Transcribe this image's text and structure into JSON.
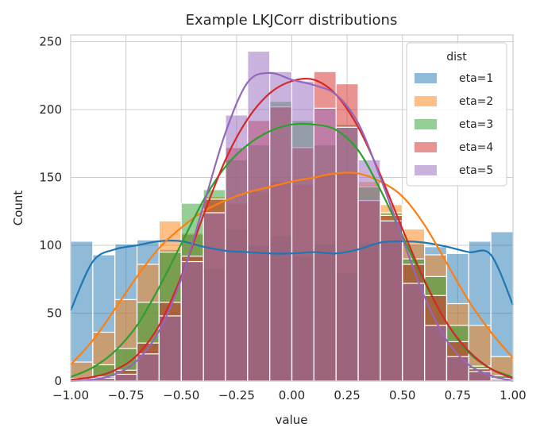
{
  "chart_data": {
    "type": "histogram",
    "title": "Example LKJCorr distributions",
    "xlabel": "value",
    "ylabel": "Count",
    "xlim": [
      -1.0,
      1.0
    ],
    "ylim": [
      0,
      255
    ],
    "grid": true,
    "x_ticks": [
      "-1.00",
      "-0.75",
      "-0.50",
      "-0.25",
      "0.00",
      "0.25",
      "0.50",
      "0.75",
      "1.00"
    ],
    "y_ticks": [
      "0",
      "50",
      "100",
      "150",
      "200",
      "250"
    ],
    "bin_edges": [
      -1.0,
      -0.9,
      -0.8,
      -0.7,
      -0.6,
      -0.5,
      -0.4,
      -0.3,
      -0.2,
      -0.1,
      0.0,
      0.1,
      0.2,
      0.3,
      0.4,
      0.5,
      0.6,
      0.7,
      0.8,
      0.9,
      1.0
    ],
    "legend": {
      "title": "dist",
      "position": "upper right"
    },
    "series": [
      {
        "name": "eta=1",
        "color": "#1f77b4",
        "counts": [
          103,
          93,
          101,
          104,
          97,
          108,
          83,
          112,
          100,
          107,
          92,
          101,
          80,
          102,
          103,
          101,
          99,
          94,
          103,
          110
        ],
        "kde": [
          52,
          88,
          97,
          100,
          103,
          103,
          99,
          96,
          95,
          94,
          94,
          95,
          94,
          97,
          102,
          103,
          102,
          99,
          95,
          93,
          56
        ]
      },
      {
        "name": "eta=2",
        "color": "#ff7f0e",
        "counts": [
          14,
          36,
          60,
          86,
          118,
          109,
          136,
          131,
          140,
          147,
          145,
          152,
          154,
          147,
          130,
          112,
          93,
          57,
          41,
          18
        ],
        "kde": [
          12,
          30,
          53,
          77,
          98,
          113,
          125,
          133,
          139,
          143,
          147,
          150,
          153,
          153,
          147,
          136,
          115,
          87,
          59,
          36,
          17
        ]
      },
      {
        "name": "eta=3",
        "color": "#2ca02c",
        "counts": [
          2,
          12,
          24,
          58,
          95,
          131,
          141,
          163,
          174,
          206,
          192,
          174,
          189,
          143,
          124,
          90,
          77,
          41,
          11,
          4
        ],
        "kde": [
          3,
          10,
          22,
          41,
          69,
          101,
          133,
          158,
          174,
          184,
          189,
          189,
          185,
          170,
          141,
          107,
          73,
          43,
          21,
          9,
          3
        ]
      },
      {
        "name": "eta=4",
        "color": "#d62728",
        "counts": [
          1,
          3,
          8,
          28,
          58,
          92,
          134,
          172,
          192,
          202,
          172,
          228,
          219,
          133,
          122,
          86,
          63,
          29,
          9,
          2
        ],
        "kde": [
          1,
          3,
          8,
          19,
          41,
          77,
          122,
          163,
          193,
          212,
          221,
          222,
          211,
          187,
          152,
          112,
          74,
          43,
          22,
          9,
          2
        ]
      },
      {
        "name": "eta=5",
        "color": "#9467bd",
        "counts": [
          1,
          2,
          5,
          20,
          48,
          88,
          124,
          196,
          243,
          228,
          221,
          201,
          187,
          163,
          118,
          72,
          41,
          18,
          7,
          1
        ],
        "kde": [
          0,
          1,
          5,
          15,
          37,
          75,
          129,
          183,
          220,
          227,
          222,
          218,
          211,
          190,
          150,
          105,
          62,
          30,
          12,
          4,
          0
        ]
      }
    ]
  }
}
